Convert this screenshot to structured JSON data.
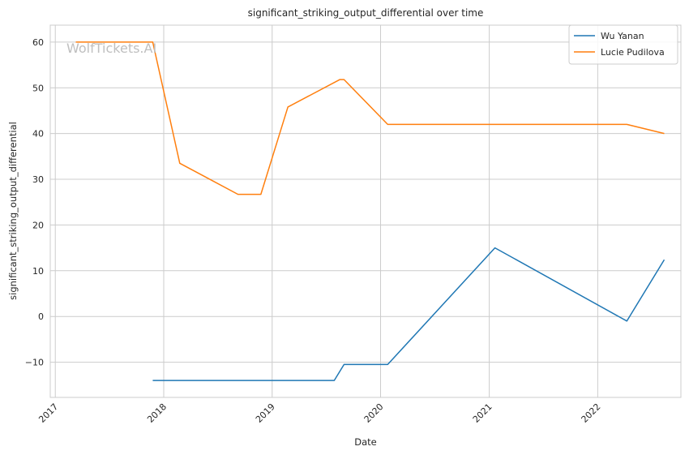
{
  "watermark": "WolfTickets.AI",
  "chart_data": {
    "type": "line",
    "title": "significant_striking_output_differential over time",
    "xlabel": "Date",
    "ylabel": "significant_striking_output_differential",
    "x_axis": "date",
    "xlim": [
      "2016-12-15",
      "2022-10-08"
    ],
    "ylim": [
      -17.7,
      63.7
    ],
    "x_ticks": [
      "2017",
      "2018",
      "2019",
      "2020",
      "2021",
      "2022"
    ],
    "y_ticks": [
      -10,
      0,
      10,
      20,
      30,
      40,
      50,
      60
    ],
    "grid": true,
    "legend": "top-right",
    "series": [
      {
        "name": "Wu Yanan",
        "color": "#1f77b4",
        "points": [
          [
            "2017-11-25",
            -14
          ],
          [
            "2019-07-29",
            -14
          ],
          [
            "2019-08-31",
            -10.5
          ],
          [
            "2020-01-25",
            -10.5
          ],
          [
            "2021-01-20",
            15
          ],
          [
            "2022-04-09",
            -1
          ],
          [
            "2022-08-13",
            12.4
          ]
        ]
      },
      {
        "name": "Lucie Pudilova",
        "color": "#ff7f0e",
        "points": [
          [
            "2017-03-11",
            60
          ],
          [
            "2017-11-25",
            60
          ],
          [
            "2018-02-24",
            33.5
          ],
          [
            "2018-09-08",
            26.7
          ],
          [
            "2018-11-24",
            26.7
          ],
          [
            "2019-02-23",
            45.8
          ],
          [
            "2019-08-17",
            51.8
          ],
          [
            "2019-08-31",
            51.8
          ],
          [
            "2020-01-25",
            42
          ],
          [
            "2022-04-09",
            42
          ],
          [
            "2022-08-13",
            40
          ]
        ]
      }
    ]
  }
}
